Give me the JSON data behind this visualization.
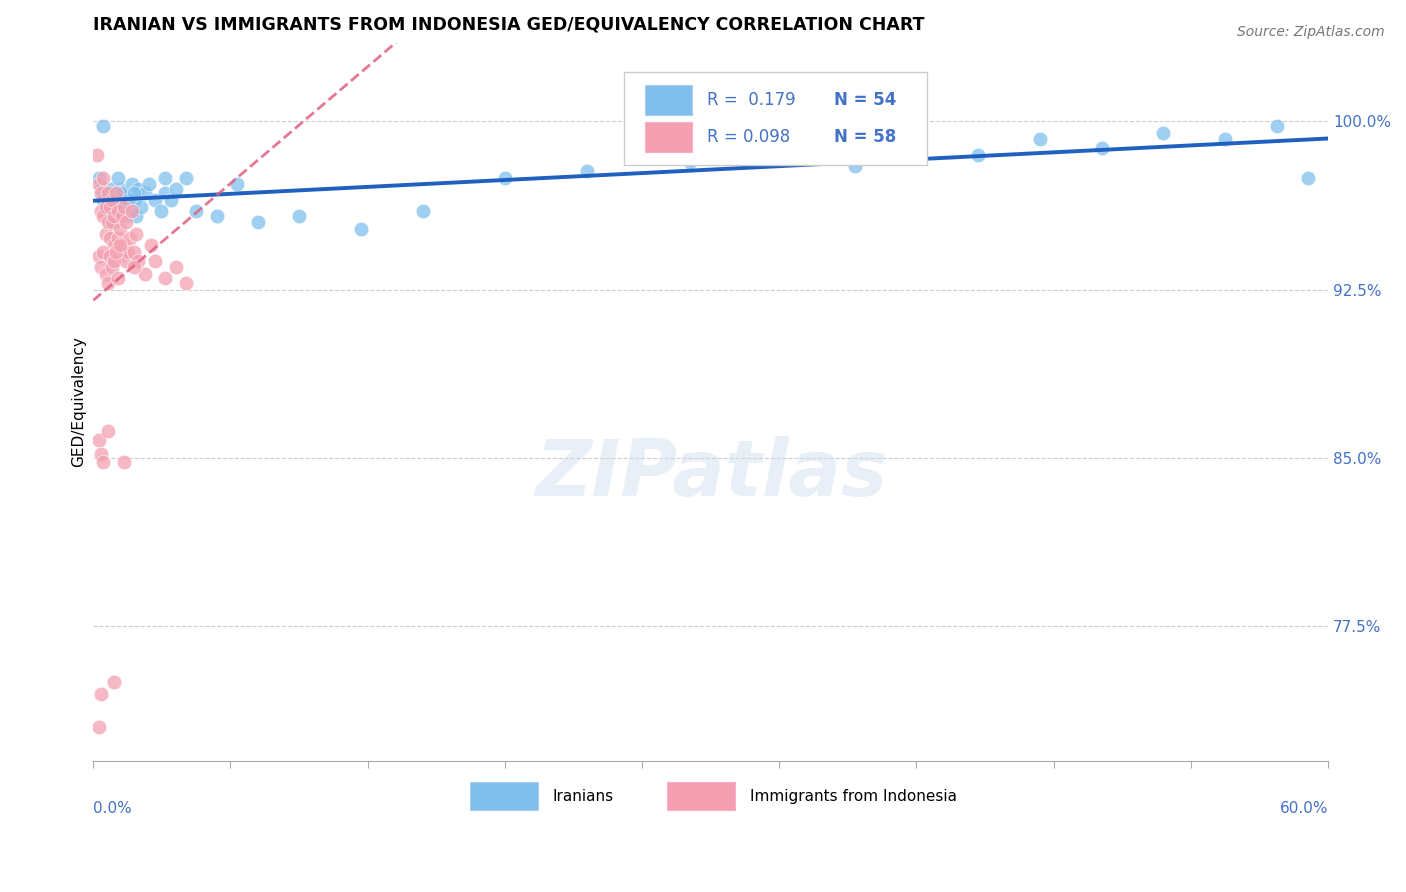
{
  "title": "IRANIAN VS IMMIGRANTS FROM INDONESIA GED/EQUIVALENCY CORRELATION CHART",
  "source": "Source: ZipAtlas.com",
  "ylabel": "GED/Equivalency",
  "ytick_labels": [
    "100.0%",
    "92.5%",
    "85.0%",
    "77.5%"
  ],
  "ytick_values": [
    1.0,
    0.925,
    0.85,
    0.775
  ],
  "xmin": 0.0,
  "xmax": 0.6,
  "ymin": 0.715,
  "ymax": 1.035,
  "legend_r1": "R =  0.179",
  "legend_n1": "N = 54",
  "legend_r2": "R = 0.098",
  "legend_n2": "N = 58",
  "blue_color": "#7fbfed",
  "pink_color": "#f4a0b0",
  "blue_line_color": "#2060c0",
  "pink_line_color": "#e06080",
  "watermark": "ZIPatlas",
  "iranians_x": [
    0.003,
    0.004,
    0.005,
    0.006,
    0.007,
    0.008,
    0.009,
    0.01,
    0.011,
    0.012,
    0.013,
    0.014,
    0.015,
    0.016,
    0.017,
    0.018,
    0.019,
    0.02,
    0.021,
    0.022,
    0.023,
    0.025,
    0.027,
    0.03,
    0.033,
    0.035,
    0.038,
    0.04,
    0.045,
    0.05,
    0.06,
    0.07,
    0.08,
    0.1,
    0.13,
    0.16,
    0.2,
    0.24,
    0.29,
    0.33,
    0.37,
    0.4,
    0.43,
    0.46,
    0.49,
    0.52,
    0.55,
    0.575,
    0.59,
    0.005,
    0.008,
    0.012,
    0.02,
    0.035
  ],
  "iranians_y": [
    0.975,
    0.97,
    0.965,
    0.96,
    0.968,
    0.962,
    0.97,
    0.955,
    0.965,
    0.96,
    0.97,
    0.968,
    0.962,
    0.958,
    0.965,
    0.96,
    0.972,
    0.965,
    0.958,
    0.97,
    0.962,
    0.968,
    0.972,
    0.965,
    0.96,
    0.968,
    0.965,
    0.97,
    0.975,
    0.96,
    0.958,
    0.972,
    0.955,
    0.958,
    0.952,
    0.96,
    0.975,
    0.978,
    0.982,
    0.985,
    0.98,
    0.988,
    0.985,
    0.992,
    0.988,
    0.995,
    0.992,
    0.998,
    0.975,
    0.998,
    0.955,
    0.975,
    0.968,
    0.975
  ],
  "indonesia_x": [
    0.002,
    0.003,
    0.004,
    0.004,
    0.005,
    0.005,
    0.006,
    0.006,
    0.007,
    0.007,
    0.008,
    0.008,
    0.009,
    0.009,
    0.01,
    0.01,
    0.011,
    0.012,
    0.012,
    0.013,
    0.013,
    0.014,
    0.015,
    0.015,
    0.016,
    0.016,
    0.017,
    0.018,
    0.019,
    0.02,
    0.021,
    0.022,
    0.025,
    0.028,
    0.03,
    0.035,
    0.04,
    0.045,
    0.003,
    0.004,
    0.005,
    0.006,
    0.007,
    0.008,
    0.009,
    0.01,
    0.011,
    0.012,
    0.013,
    0.02,
    0.003,
    0.004,
    0.005,
    0.007,
    0.01,
    0.015,
    0.003,
    0.004
  ],
  "indonesia_y": [
    0.985,
    0.972,
    0.968,
    0.96,
    0.975,
    0.958,
    0.962,
    0.95,
    0.968,
    0.955,
    0.962,
    0.948,
    0.955,
    0.965,
    0.958,
    0.945,
    0.968,
    0.96,
    0.948,
    0.952,
    0.94,
    0.958,
    0.945,
    0.962,
    0.938,
    0.955,
    0.942,
    0.948,
    0.96,
    0.942,
    0.95,
    0.938,
    0.932,
    0.945,
    0.938,
    0.93,
    0.935,
    0.928,
    0.94,
    0.935,
    0.942,
    0.932,
    0.928,
    0.94,
    0.935,
    0.938,
    0.942,
    0.93,
    0.945,
    0.935,
    0.858,
    0.852,
    0.848,
    0.862,
    0.75,
    0.848,
    0.73,
    0.745
  ]
}
